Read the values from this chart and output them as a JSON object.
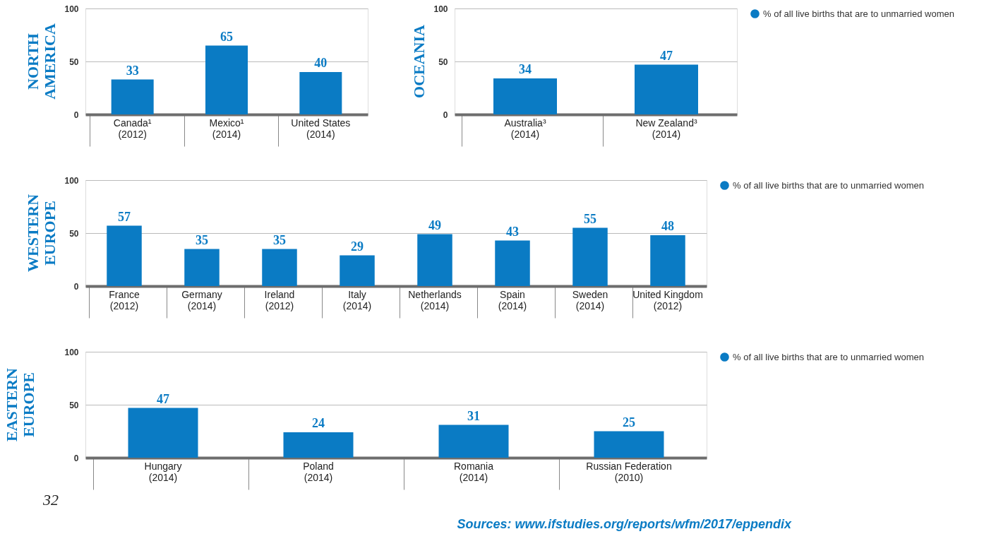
{
  "chart_data": [
    {
      "type": "bar",
      "title": "NORTH AMERICA",
      "categories": [
        "Canada¹\n(2012)",
        "Mexico¹\n(2014)",
        "United States\n(2014)"
      ],
      "series": [
        {
          "color": "#0a7bc4",
          "values": [
            33,
            65,
            40
          ]
        }
      ],
      "ylim": [
        0,
        100
      ],
      "yticks": [
        0,
        50,
        100
      ],
      "grid": "y",
      "data_labels": true,
      "legend": false
    },
    {
      "type": "bar",
      "title": "OCEANIA",
      "categories": [
        "Australia³\n(2014)",
        "New Zealand³\n(2014)"
      ],
      "series": [
        {
          "name": "% of all live births that are to unmarried women",
          "color": "#0a7bc4",
          "values": [
            34,
            47
          ]
        }
      ],
      "ylim": [
        0,
        100
      ],
      "yticks": [
        0,
        50,
        100
      ],
      "grid": "y",
      "data_labels": true,
      "legend": "right"
    },
    {
      "type": "bar",
      "title": "WESTERN EUROPE",
      "categories": [
        "France\n(2012)",
        "Germany\n(2014)",
        "Ireland\n(2012)",
        "Italy\n(2014)",
        "Netherlands\n(2014)",
        "Spain\n(2014)",
        "Sweden\n(2014)",
        "United Kingdom\n(2012)"
      ],
      "series": [
        {
          "name": "% of all live births that are to unmarried women",
          "color": "#0a7bc4",
          "values": [
            57,
            35,
            35,
            29,
            49,
            43,
            55,
            48
          ]
        }
      ],
      "ylim": [
        0,
        100
      ],
      "yticks": [
        0,
        50,
        100
      ],
      "grid": "y",
      "data_labels": true,
      "legend": "right"
    },
    {
      "type": "bar",
      "title": "EASTERN EUROPE",
      "categories": [
        "Hungary\n(2014)",
        "Poland\n(2014)",
        "Romania\n(2014)",
        "Russian Federation\n(2010)"
      ],
      "series": [
        {
          "name": "% of all live births that are to unmarried women",
          "color": "#0a7bc4",
          "values": [
            47,
            24,
            31,
            25
          ]
        }
      ],
      "ylim": [
        0,
        100
      ],
      "yticks": [
        0,
        50,
        100
      ],
      "grid": "y",
      "data_labels": true,
      "legend": "right",
      "annotations": [
        "32",
        "Sources: www.ifstudies.org/reports/wfm/2017/eppendix"
      ]
    }
  ]
}
